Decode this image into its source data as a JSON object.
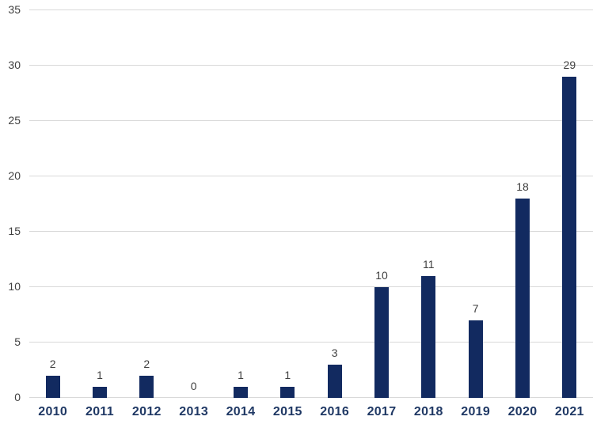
{
  "chart_data": {
    "type": "bar",
    "categories": [
      "2010",
      "2011",
      "2012",
      "2013",
      "2014",
      "2015",
      "2016",
      "2017",
      "2018",
      "2019",
      "2020",
      "2021"
    ],
    "values": [
      2,
      1,
      2,
      0,
      1,
      1,
      3,
      10,
      11,
      7,
      18,
      29
    ],
    "yticks": [
      0,
      5,
      10,
      15,
      20,
      25,
      30,
      35
    ],
    "ylim": [
      0,
      35
    ],
    "grid": true,
    "legend": false,
    "data_labels": true,
    "layout_hints": {
      "orientation": "vertical",
      "gridlines": "horizontal-light",
      "value_labels_position": "above-bars",
      "y_axis_side": "left"
    },
    "colors": {
      "bar": "#122A60",
      "grid": "#D9D9D9",
      "value_label": "#404040",
      "y_axis_label": "#404040",
      "category_label": "#1F3864",
      "background": "#FFFFFF"
    }
  }
}
